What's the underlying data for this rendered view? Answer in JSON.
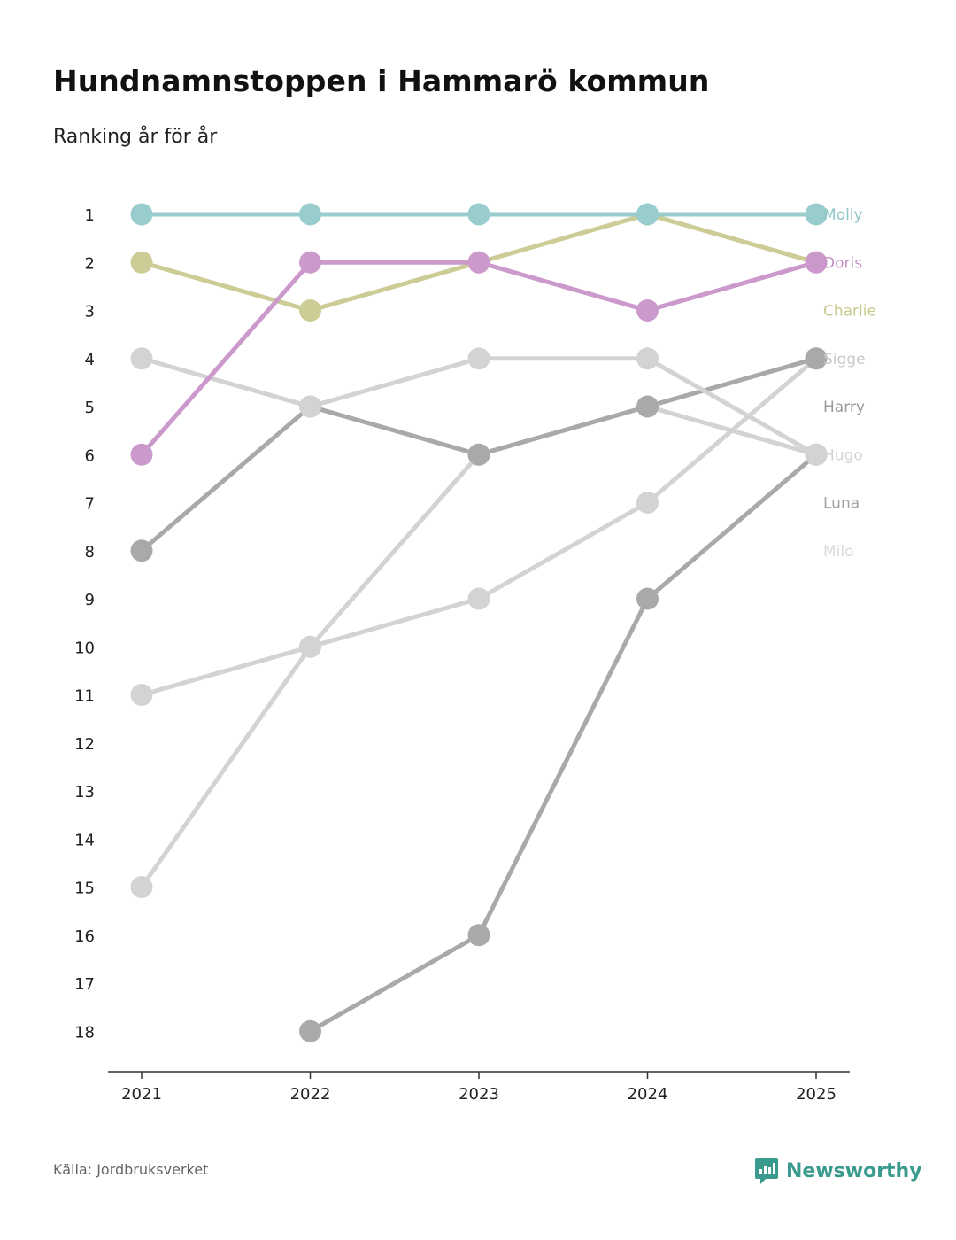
{
  "header": {
    "title": "Hundnamnstoppen i Hammarö kommun",
    "subtitle": "Ranking år för år"
  },
  "footer": {
    "source": "Källa: Jordbruksverket",
    "brand": "Newsworthy",
    "brand_icon": "newsworthy-logo-icon"
  },
  "colors": {
    "accent": "#3a9a8e",
    "axis": "#333333",
    "tick_text": "#222222"
  },
  "chart_data": {
    "type": "line",
    "title": "Hundnamnstoppen i Hammarö kommun",
    "subtitle": "Ranking år för år",
    "xlabel": "",
    "ylabel": "",
    "x": [
      "2021",
      "2022",
      "2023",
      "2024",
      "2025"
    ],
    "y_ticks": [
      "1",
      "2",
      "3",
      "4",
      "5",
      "6",
      "7",
      "8",
      "9",
      "10",
      "11",
      "12",
      "13",
      "14",
      "15",
      "16",
      "17",
      "18"
    ],
    "ylim": [
      1,
      18
    ],
    "y_inverted": true,
    "grid": false,
    "legend": "right, labels at end of lines",
    "series": [
      {
        "name": "Milo",
        "values": [
          15,
          10,
          6,
          5,
          6
        ],
        "color": "#d3d3d3",
        "label_color": "#d8d8d8"
      },
      {
        "name": "Luna",
        "values": [
          null,
          18,
          16,
          9,
          6
        ],
        "color": "#a9a9a9",
        "label_color": "#a3a3a3"
      },
      {
        "name": "Hugo",
        "values": [
          11,
          10,
          9,
          7,
          4
        ],
        "color": "#d3d3d3",
        "label_color": "#d3d3d3"
      },
      {
        "name": "Harry",
        "values": [
          8,
          5,
          6,
          5,
          4
        ],
        "color": "#a9a9a9",
        "label_color": "#9a9a9a"
      },
      {
        "name": "Sigge",
        "values": [
          4,
          5,
          4,
          4,
          6
        ],
        "color": "#d3d3d3",
        "label_color": "#c8c8c8"
      },
      {
        "name": "Charlie",
        "values": [
          2,
          3,
          2,
          1,
          2
        ],
        "color": "#cccc96",
        "label_color": "#c9c98e"
      },
      {
        "name": "Doris",
        "values": [
          6,
          2,
          2,
          3,
          2
        ],
        "color": "#cc99cc",
        "label_color": "#c790c7"
      },
      {
        "name": "Molly",
        "values": [
          1,
          1,
          1,
          1,
          1
        ],
        "color": "#99cccc",
        "label_color": "#8fc6c6"
      }
    ]
  }
}
